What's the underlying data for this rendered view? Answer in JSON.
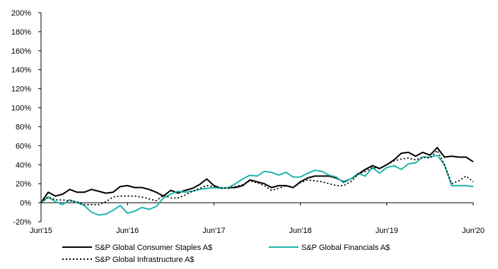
{
  "chart_data": {
    "type": "line",
    "title": "",
    "xlabel": "",
    "ylabel": "",
    "x_tick_labels": [
      "Jun'15",
      "Jun'16",
      "Jun'17",
      "Jun'18",
      "Jun'19",
      "Jun'20"
    ],
    "y_tick_labels": [
      "-20%",
      "0%",
      "20%",
      "40%",
      "60%",
      "80%",
      "100%",
      "120%",
      "140%",
      "160%",
      "180%",
      "200%"
    ],
    "x_range": [
      "Jun'15",
      "Jun'20"
    ],
    "ylim": [
      -20,
      200
    ],
    "y_unit": "%",
    "grid": false,
    "legend_position": "bottom",
    "series": [
      {
        "name": "S&P Global Consumer Staples A$",
        "color": "#000000",
        "style": "solid",
        "values": [
          0,
          11,
          7,
          9,
          14,
          11,
          11,
          14,
          12,
          10,
          11,
          17,
          18,
          16,
          16,
          14,
          11,
          7,
          13,
          10,
          13,
          15,
          19,
          25,
          18,
          15,
          16,
          16,
          18,
          24,
          22,
          20,
          16,
          18,
          18,
          16,
          22,
          26,
          28,
          28,
          28,
          26,
          22,
          25,
          30,
          35,
          39,
          36,
          40,
          45,
          52,
          53,
          49,
          53,
          50,
          58,
          48,
          49,
          48,
          48,
          43
        ]
      },
      {
        "name": "S&P Global Financials A$",
        "color": "#1fb5ac",
        "style": "solid",
        "values": [
          0,
          6,
          1,
          -2,
          3,
          0,
          -3,
          -10,
          -13,
          -12,
          -8,
          -3,
          -11,
          -9,
          -5,
          -7,
          -4,
          5,
          9,
          12,
          11,
          12,
          14,
          15,
          16,
          15,
          16,
          20,
          25,
          29,
          28,
          33,
          32,
          29,
          32,
          27,
          27,
          31,
          34,
          33,
          29,
          27,
          21,
          25,
          31,
          28,
          37,
          31,
          37,
          39,
          35,
          41,
          42,
          48,
          48,
          50,
          40,
          18,
          18,
          18,
          17
        ]
      },
      {
        "name": "S&P Global Infrastructure A$",
        "color": "#000000",
        "style": "dotted",
        "values": [
          0,
          6,
          3,
          3,
          2,
          1,
          -2,
          -2,
          -2,
          1,
          6,
          7,
          7,
          7,
          6,
          4,
          2,
          8,
          5,
          5,
          8,
          12,
          15,
          18,
          17,
          16,
          15,
          17,
          19,
          23,
          21,
          18,
          13,
          15,
          18,
          16,
          21,
          24,
          23,
          22,
          20,
          18,
          18,
          22,
          30,
          33,
          37,
          36,
          40,
          44,
          46,
          47,
          45,
          48,
          47,
          55,
          40,
          20,
          23,
          28,
          22
        ]
      }
    ]
  }
}
